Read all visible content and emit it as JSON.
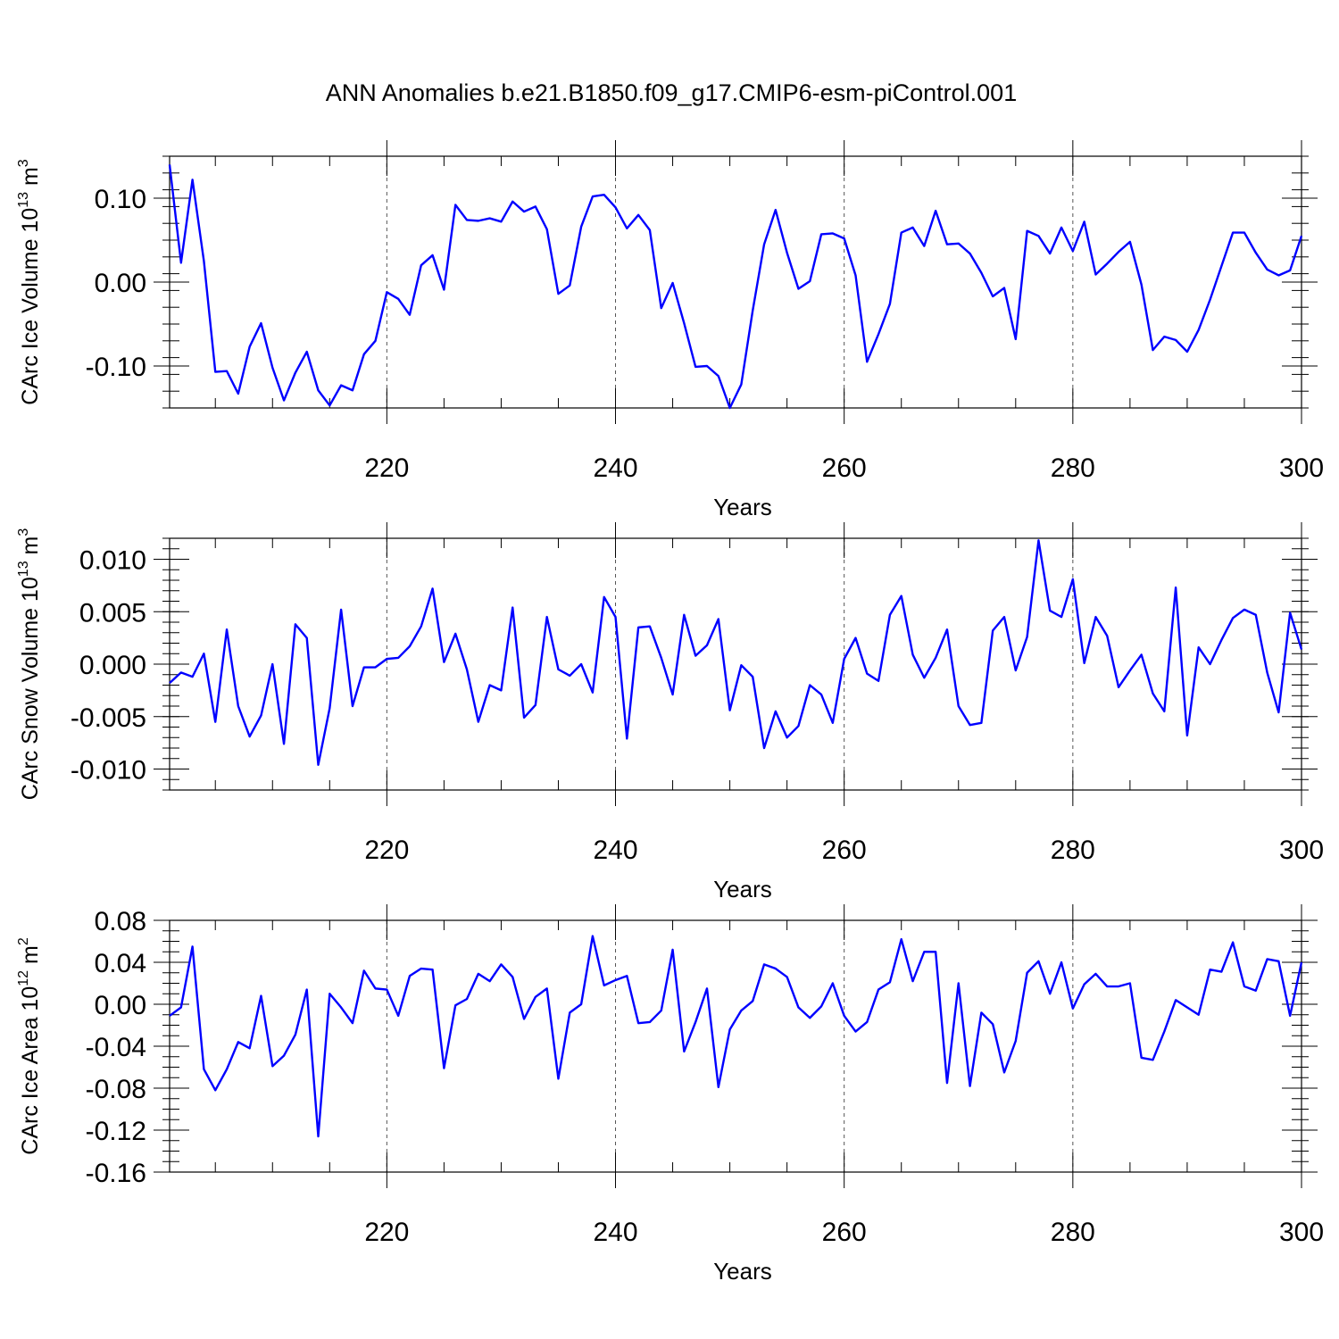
{
  "title": "ANN Anomalies b.e21.B1850.f09_g17.CMIP6-esm-piControl.001",
  "colors": {
    "line": "#0000ff",
    "axis": "#000000",
    "grid": "#555555"
  },
  "chart_data": [
    {
      "type": "line",
      "ylabel": {
        "prefix": "CArc Ice Volume 10",
        "exp": "13",
        "unit": " m",
        "unit_exp": "3"
      },
      "xlabel": "Years",
      "xlim": [
        201,
        300
      ],
      "ylim": [
        -0.15,
        0.15
      ],
      "xticks": [
        220,
        240,
        260,
        280,
        300
      ],
      "yticks": [
        -0.1,
        0.0,
        0.1
      ],
      "ytick_labels": [
        "-0.10",
        "0.00",
        "0.10"
      ],
      "yminor": 0.02,
      "grid_x": [
        220,
        240,
        260,
        280
      ],
      "x_start": 201,
      "values": [
        0.14,
        0.023,
        0.122,
        0.025,
        -0.107,
        -0.106,
        -0.133,
        -0.077,
        -0.049,
        -0.102,
        -0.141,
        -0.108,
        -0.083,
        -0.129,
        -0.147,
        -0.123,
        -0.129,
        -0.086,
        -0.07,
        -0.012,
        -0.02,
        -0.039,
        0.02,
        0.032,
        -0.009,
        0.092,
        0.074,
        0.073,
        0.076,
        0.072,
        0.096,
        0.084,
        0.09,
        0.063,
        -0.014,
        -0.004,
        0.066,
        0.102,
        0.104,
        0.089,
        0.064,
        0.08,
        0.062,
        -0.031,
        -0.001,
        -0.049,
        -0.101,
        -0.1,
        -0.112,
        -0.15,
        -0.122,
        -0.034,
        0.045,
        0.086,
        0.035,
        -0.008,
        0.001,
        0.057,
        0.058,
        0.052,
        0.008,
        -0.095,
        -0.062,
        -0.026,
        0.059,
        0.065,
        0.043,
        0.085,
        0.045,
        0.046,
        0.034,
        0.011,
        -0.017,
        -0.007,
        -0.068,
        0.061,
        0.055,
        0.034,
        0.065,
        0.037,
        0.072,
        0.009,
        0.022,
        0.036,
        0.048,
        -0.003,
        -0.081,
        -0.065,
        -0.069,
        -0.083,
        -0.057,
        -0.021,
        0.019,
        0.059,
        0.059,
        0.035,
        0.015,
        0.008,
        0.014,
        0.055
      ]
    },
    {
      "type": "line",
      "ylabel": {
        "prefix": "CArc Snow Volume 10",
        "exp": "13",
        "unit": " m",
        "unit_exp": "3"
      },
      "xlabel": "Years",
      "xlim": [
        201,
        300
      ],
      "ylim": [
        -0.012,
        0.012
      ],
      "xticks": [
        220,
        240,
        260,
        280,
        300
      ],
      "yticks": [
        -0.01,
        -0.005,
        0.0,
        0.005,
        0.01
      ],
      "ytick_labels": [
        "-0.010",
        "-0.005",
        "0.000",
        "0.005",
        "0.010"
      ],
      "yminor": 0.001,
      "grid_x": [
        220,
        240,
        260,
        280
      ],
      "x_start": 201,
      "values": [
        -0.0018,
        -0.0008,
        -0.0012,
        0.001,
        -0.0055,
        0.0033,
        -0.004,
        -0.0069,
        -0.0049,
        0.0,
        -0.0076,
        0.0038,
        0.0025,
        -0.0096,
        -0.0042,
        0.0052,
        -0.004,
        -0.0003,
        -0.0003,
        0.0005,
        0.0006,
        0.0017,
        0.0036,
        0.0072,
        0.0002,
        0.0029,
        -0.0005,
        -0.0055,
        -0.002,
        -0.0025,
        0.0054,
        -0.0051,
        -0.0039,
        0.0045,
        -0.0005,
        -0.0011,
        0.0,
        -0.0027,
        0.0064,
        0.0045,
        -0.0071,
        0.0035,
        0.0036,
        0.0006,
        -0.0029,
        0.0047,
        0.0008,
        0.0018,
        0.0043,
        -0.0044,
        -0.0001,
        -0.0012,
        -0.008,
        -0.0045,
        -0.007,
        -0.0059,
        -0.002,
        -0.0029,
        -0.0056,
        0.0005,
        0.0025,
        -0.0009,
        -0.0016,
        0.0047,
        0.0065,
        0.0009,
        -0.0013,
        0.0006,
        0.0033,
        -0.004,
        -0.0058,
        -0.0056,
        0.0032,
        0.0045,
        -0.0006,
        0.0026,
        0.0118,
        0.0051,
        0.0045,
        0.0081,
        0.0001,
        0.0045,
        0.0027,
        -0.0022,
        -0.0006,
        0.0009,
        -0.0028,
        -0.0045,
        0.0073,
        -0.0068,
        0.0016,
        0.0,
        0.0023,
        0.0044,
        0.0052,
        0.0047,
        -0.0008,
        -0.0046,
        0.0049,
        0.0014
      ]
    },
    {
      "type": "line",
      "ylabel": {
        "prefix": "CArc Ice Area 10",
        "exp": "12",
        "unit": " m",
        "unit_exp": "2"
      },
      "xlabel": "Years",
      "xlim": [
        201,
        300
      ],
      "ylim": [
        -0.16,
        0.08
      ],
      "xticks": [
        220,
        240,
        260,
        280,
        300
      ],
      "yticks": [
        -0.16,
        -0.12,
        -0.08,
        -0.04,
        0.0,
        0.04,
        0.08
      ],
      "ytick_labels": [
        "-0.16",
        "-0.12",
        "-0.08",
        "-0.04",
        "0.00",
        "0.04",
        "0.08"
      ],
      "yminor": 0.01,
      "grid_x": [
        220,
        240,
        260,
        280
      ],
      "x_start": 201,
      "values": [
        -0.011,
        -0.003,
        0.055,
        -0.062,
        -0.082,
        -0.062,
        -0.036,
        -0.042,
        0.008,
        -0.059,
        -0.049,
        -0.029,
        0.014,
        -0.126,
        0.01,
        -0.003,
        -0.018,
        0.032,
        0.015,
        0.014,
        -0.011,
        0.027,
        0.034,
        0.033,
        -0.061,
        -0.001,
        0.005,
        0.029,
        0.022,
        0.038,
        0.026,
        -0.014,
        0.007,
        0.015,
        -0.071,
        -0.008,
        0.0,
        0.065,
        0.018,
        0.023,
        0.027,
        -0.018,
        -0.017,
        -0.006,
        0.052,
        -0.045,
        -0.017,
        0.015,
        -0.079,
        -0.024,
        -0.006,
        0.003,
        0.038,
        0.034,
        0.026,
        -0.003,
        -0.013,
        -0.002,
        0.02,
        -0.011,
        -0.026,
        -0.017,
        0.014,
        0.021,
        0.062,
        0.022,
        0.05,
        0.05,
        -0.075,
        0.02,
        -0.078,
        -0.008,
        -0.019,
        -0.065,
        -0.035,
        0.03,
        0.041,
        0.01,
        0.04,
        -0.004,
        0.019,
        0.029,
        0.017,
        0.017,
        0.02,
        -0.051,
        -0.053,
        -0.026,
        0.004,
        -0.003,
        -0.01,
        0.033,
        0.031,
        0.059,
        0.017,
        0.013,
        0.043,
        0.041,
        -0.011,
        0.04
      ]
    }
  ]
}
